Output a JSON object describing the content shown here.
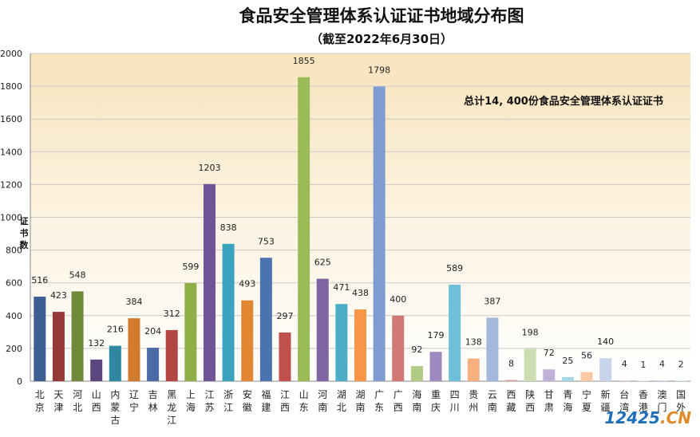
{
  "chart_data": {
    "type": "bar",
    "title": "食品安全管理体系认证证书地域分布图",
    "subtitle": "（截至2022年6月30日）",
    "ylabel": "证书数",
    "xlabel": "",
    "ylim": [
      0,
      2000
    ],
    "ytick_step": 200,
    "yticks": [
      "0",
      "200",
      "400",
      "600",
      "800",
      "1000",
      "1200",
      "1400",
      "1600",
      "1800",
      "2000"
    ],
    "grid": true,
    "annotation": "总计14, 400份食品安全管理体系认证证书",
    "categories": [
      "北京",
      "天津",
      "河北",
      "山西",
      "内蒙古",
      "辽宁",
      "吉林",
      "黑龙江",
      "上海",
      "江苏",
      "浙江",
      "安徽",
      "福建",
      "江西",
      "山东",
      "河南",
      "湖北",
      "湖南",
      "广东",
      "广西",
      "海南",
      "重庆",
      "四川",
      "贵州",
      "云南",
      "西藏",
      "陕西",
      "甘肃",
      "青海",
      "宁夏",
      "新疆",
      "台湾",
      "香港",
      "澳门",
      "国外"
    ],
    "values": [
      516,
      423,
      548,
      132,
      216,
      384,
      204,
      312,
      599,
      1203,
      838,
      493,
      753,
      297,
      1855,
      625,
      471,
      438,
      1798,
      400,
      92,
      179,
      589,
      138,
      387,
      8,
      198,
      72,
      25,
      56,
      140,
      4,
      1,
      4,
      2
    ],
    "colors": [
      "#3c5e93",
      "#953a38",
      "#6f8a39",
      "#5c4680",
      "#2f87a1",
      "#d17b2e",
      "#4a6ba6",
      "#b04541",
      "#8eae46",
      "#6f5496",
      "#3ca3be",
      "#e18734",
      "#4a73b0",
      "#c0504d",
      "#9bbb59",
      "#8064a2",
      "#4bacc6",
      "#f79646",
      "#7e9ccf",
      "#d07874",
      "#b1cb85",
      "#9f8ac0",
      "#6fbfd8",
      "#f9b080",
      "#a3b8dc",
      "#dea6a4",
      "#cdddb0",
      "#c0b2d6",
      "#a6d7e5",
      "#fbc8a5",
      "#c6d3ea",
      "#e9c7c6",
      "#dde8cc",
      "#d4cbe3",
      "#c3e3ed"
    ]
  },
  "watermark": {
    "text": "12425.CN",
    "color_main": "#1f6fb8",
    "color_accent": "#e08a2a"
  }
}
